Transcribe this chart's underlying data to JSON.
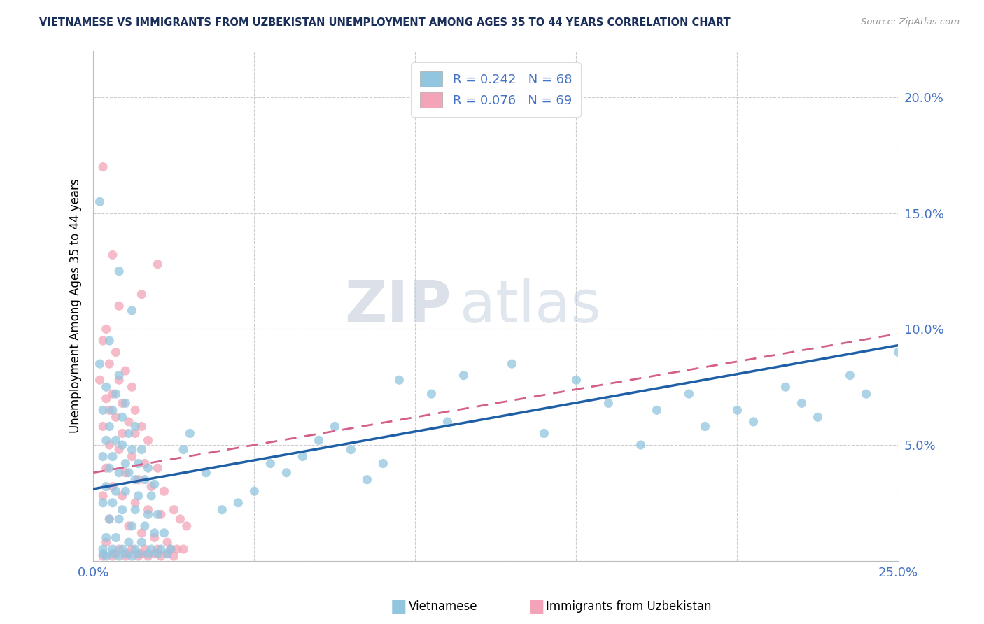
{
  "title": "VIETNAMESE VS IMMIGRANTS FROM UZBEKISTAN UNEMPLOYMENT AMONG AGES 35 TO 44 YEARS CORRELATION CHART",
  "source": "Source: ZipAtlas.com",
  "ylabel": "Unemployment Among Ages 35 to 44 years",
  "xlim": [
    0.0,
    0.25
  ],
  "ylim": [
    0.0,
    0.22
  ],
  "xticks": [
    0.0,
    0.05,
    0.1,
    0.15,
    0.2,
    0.25
  ],
  "yticks": [
    0.0,
    0.05,
    0.1,
    0.15,
    0.2
  ],
  "xticklabels": [
    "0.0%",
    "",
    "",
    "",
    "",
    "25.0%"
  ],
  "yticklabels_right": [
    "",
    "5.0%",
    "10.0%",
    "15.0%",
    "20.0%"
  ],
  "watermark_zip": "ZIP",
  "watermark_atlas": "atlas",
  "legend_line1": "R = 0.242   N = 68",
  "legend_line2": "R = 0.076   N = 69",
  "blue_color": "#92c5de",
  "pink_color": "#f4a4b8",
  "blue_line_color": "#1f5fa6",
  "pink_line_color": "#d45f8a",
  "title_color": "#1a2e5a",
  "axis_label_color": "#4472c4",
  "blue_trend_x": [
    0.0,
    0.25
  ],
  "blue_trend_y": [
    0.031,
    0.093
  ],
  "pink_trend_x": [
    0.0,
    0.25
  ],
  "pink_trend_y": [
    0.038,
    0.098
  ],
  "blue_scatter": [
    [
      0.002,
      0.155
    ],
    [
      0.008,
      0.125
    ],
    [
      0.012,
      0.108
    ],
    [
      0.005,
      0.095
    ],
    [
      0.002,
      0.085
    ],
    [
      0.008,
      0.08
    ],
    [
      0.004,
      0.075
    ],
    [
      0.007,
      0.072
    ],
    [
      0.01,
      0.068
    ],
    [
      0.003,
      0.065
    ],
    [
      0.006,
      0.065
    ],
    [
      0.009,
      0.062
    ],
    [
      0.013,
      0.058
    ],
    [
      0.005,
      0.058
    ],
    [
      0.011,
      0.055
    ],
    [
      0.004,
      0.052
    ],
    [
      0.007,
      0.052
    ],
    [
      0.009,
      0.05
    ],
    [
      0.012,
      0.048
    ],
    [
      0.015,
      0.048
    ],
    [
      0.003,
      0.045
    ],
    [
      0.006,
      0.045
    ],
    [
      0.01,
      0.042
    ],
    [
      0.014,
      0.042
    ],
    [
      0.017,
      0.04
    ],
    [
      0.005,
      0.04
    ],
    [
      0.008,
      0.038
    ],
    [
      0.011,
      0.038
    ],
    [
      0.013,
      0.035
    ],
    [
      0.016,
      0.035
    ],
    [
      0.019,
      0.033
    ],
    [
      0.004,
      0.032
    ],
    [
      0.007,
      0.03
    ],
    [
      0.01,
      0.03
    ],
    [
      0.014,
      0.028
    ],
    [
      0.018,
      0.028
    ],
    [
      0.003,
      0.025
    ],
    [
      0.006,
      0.025
    ],
    [
      0.009,
      0.022
    ],
    [
      0.013,
      0.022
    ],
    [
      0.017,
      0.02
    ],
    [
      0.02,
      0.02
    ],
    [
      0.005,
      0.018
    ],
    [
      0.008,
      0.018
    ],
    [
      0.012,
      0.015
    ],
    [
      0.016,
      0.015
    ],
    [
      0.019,
      0.012
    ],
    [
      0.022,
      0.012
    ],
    [
      0.004,
      0.01
    ],
    [
      0.007,
      0.01
    ],
    [
      0.011,
      0.008
    ],
    [
      0.015,
      0.008
    ],
    [
      0.018,
      0.005
    ],
    [
      0.021,
      0.005
    ],
    [
      0.024,
      0.005
    ],
    [
      0.003,
      0.005
    ],
    [
      0.006,
      0.005
    ],
    [
      0.009,
      0.005
    ],
    [
      0.013,
      0.005
    ],
    [
      0.003,
      0.003
    ],
    [
      0.006,
      0.003
    ],
    [
      0.01,
      0.003
    ],
    [
      0.014,
      0.003
    ],
    [
      0.017,
      0.003
    ],
    [
      0.02,
      0.003
    ],
    [
      0.023,
      0.003
    ],
    [
      0.004,
      0.002
    ],
    [
      0.008,
      0.002
    ],
    [
      0.012,
      0.002
    ]
  ],
  "pink_scatter": [
    [
      0.003,
      0.17
    ],
    [
      0.006,
      0.132
    ],
    [
      0.02,
      0.128
    ],
    [
      0.015,
      0.115
    ],
    [
      0.008,
      0.11
    ],
    [
      0.004,
      0.1
    ],
    [
      0.003,
      0.095
    ],
    [
      0.007,
      0.09
    ],
    [
      0.005,
      0.085
    ],
    [
      0.01,
      0.082
    ],
    [
      0.002,
      0.078
    ],
    [
      0.008,
      0.078
    ],
    [
      0.012,
      0.075
    ],
    [
      0.006,
      0.072
    ],
    [
      0.004,
      0.07
    ],
    [
      0.009,
      0.068
    ],
    [
      0.013,
      0.065
    ],
    [
      0.005,
      0.065
    ],
    [
      0.007,
      0.062
    ],
    [
      0.011,
      0.06
    ],
    [
      0.015,
      0.058
    ],
    [
      0.003,
      0.058
    ],
    [
      0.009,
      0.055
    ],
    [
      0.013,
      0.055
    ],
    [
      0.017,
      0.052
    ],
    [
      0.005,
      0.05
    ],
    [
      0.008,
      0.048
    ],
    [
      0.012,
      0.045
    ],
    [
      0.016,
      0.042
    ],
    [
      0.02,
      0.04
    ],
    [
      0.004,
      0.04
    ],
    [
      0.01,
      0.038
    ],
    [
      0.014,
      0.035
    ],
    [
      0.018,
      0.032
    ],
    [
      0.006,
      0.032
    ],
    [
      0.022,
      0.03
    ],
    [
      0.003,
      0.028
    ],
    [
      0.009,
      0.028
    ],
    [
      0.013,
      0.025
    ],
    [
      0.017,
      0.022
    ],
    [
      0.021,
      0.02
    ],
    [
      0.005,
      0.018
    ],
    [
      0.011,
      0.015
    ],
    [
      0.015,
      0.012
    ],
    [
      0.019,
      0.01
    ],
    [
      0.023,
      0.008
    ],
    [
      0.004,
      0.008
    ],
    [
      0.008,
      0.005
    ],
    [
      0.012,
      0.005
    ],
    [
      0.016,
      0.005
    ],
    [
      0.02,
      0.005
    ],
    [
      0.007,
      0.003
    ],
    [
      0.011,
      0.003
    ],
    [
      0.015,
      0.003
    ],
    [
      0.019,
      0.003
    ],
    [
      0.023,
      0.003
    ],
    [
      0.003,
      0.002
    ],
    [
      0.006,
      0.002
    ],
    [
      0.01,
      0.002
    ],
    [
      0.014,
      0.002
    ],
    [
      0.017,
      0.002
    ],
    [
      0.021,
      0.002
    ],
    [
      0.025,
      0.002
    ],
    [
      0.024,
      0.005
    ],
    [
      0.026,
      0.005
    ],
    [
      0.028,
      0.005
    ],
    [
      0.025,
      0.022
    ],
    [
      0.027,
      0.018
    ],
    [
      0.029,
      0.015
    ]
  ],
  "blue_scatter_right": [
    [
      0.095,
      0.078
    ],
    [
      0.105,
      0.072
    ],
    [
      0.115,
      0.08
    ],
    [
      0.13,
      0.085
    ],
    [
      0.15,
      0.078
    ],
    [
      0.16,
      0.068
    ],
    [
      0.175,
      0.065
    ],
    [
      0.185,
      0.072
    ],
    [
      0.2,
      0.065
    ],
    [
      0.215,
      0.075
    ],
    [
      0.225,
      0.062
    ],
    [
      0.235,
      0.08
    ],
    [
      0.11,
      0.06
    ],
    [
      0.14,
      0.055
    ],
    [
      0.17,
      0.05
    ],
    [
      0.19,
      0.058
    ],
    [
      0.205,
      0.06
    ],
    [
      0.22,
      0.068
    ],
    [
      0.24,
      0.072
    ],
    [
      0.25,
      0.09
    ],
    [
      0.055,
      0.042
    ],
    [
      0.06,
      0.038
    ],
    [
      0.065,
      0.045
    ],
    [
      0.07,
      0.052
    ],
    [
      0.075,
      0.058
    ],
    [
      0.08,
      0.048
    ],
    [
      0.085,
      0.035
    ],
    [
      0.09,
      0.042
    ],
    [
      0.05,
      0.03
    ],
    [
      0.045,
      0.025
    ],
    [
      0.04,
      0.022
    ],
    [
      0.035,
      0.038
    ],
    [
      0.03,
      0.055
    ],
    [
      0.028,
      0.048
    ]
  ]
}
